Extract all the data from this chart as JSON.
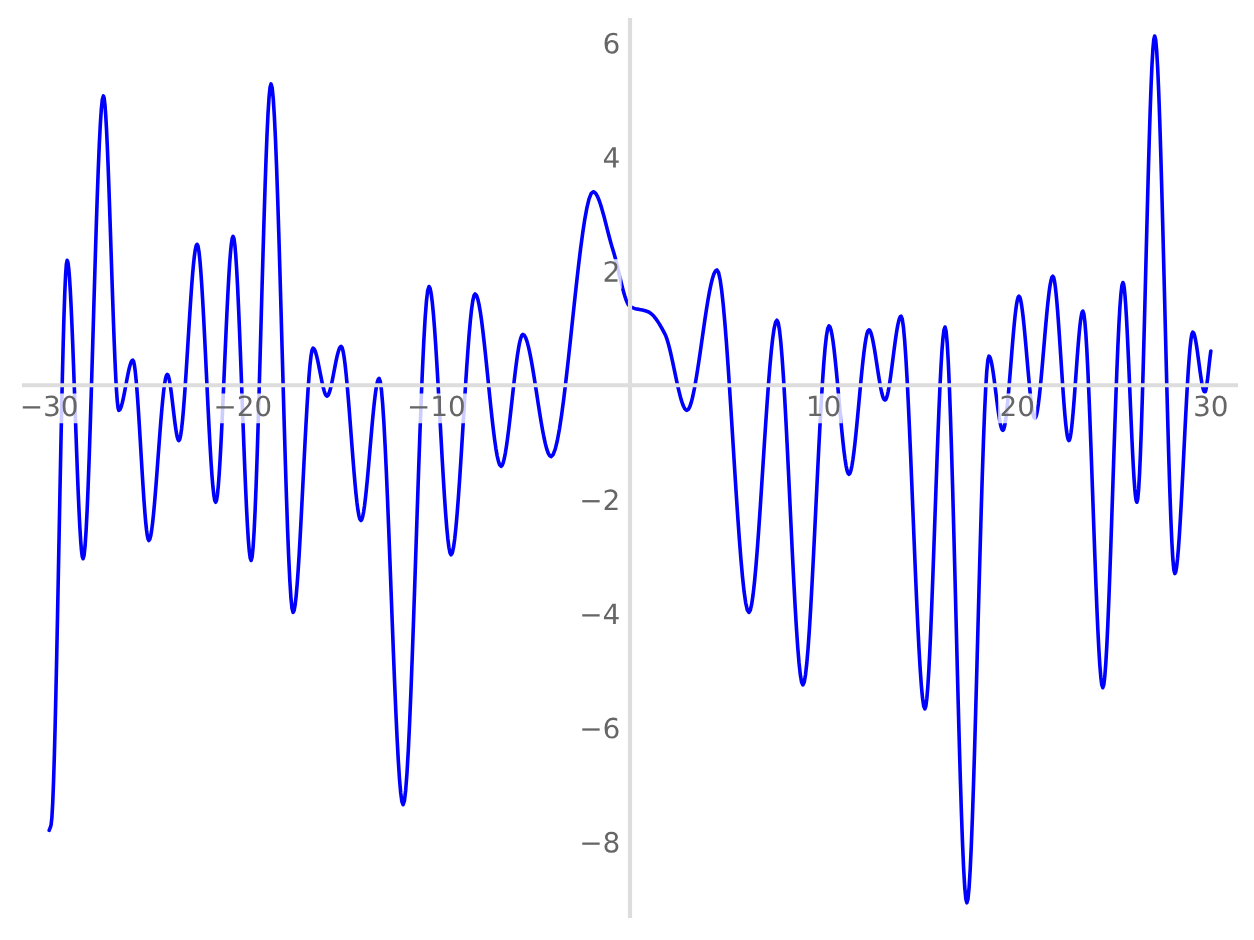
{
  "chart_data": {
    "type": "line",
    "xlim": [
      -31.3,
      31.3
    ],
    "ylim": [
      -9.3,
      6.4
    ],
    "xticks": [
      {
        "value": -30,
        "label": "−30"
      },
      {
        "value": -20,
        "label": "−20"
      },
      {
        "value": -10,
        "label": "−10"
      },
      10,
      20,
      30
    ],
    "yticks": [
      {
        "value": -8,
        "label": "−8"
      },
      {
        "value": -6,
        "label": "−6"
      },
      {
        "value": -4,
        "label": "−4"
      },
      {
        "value": -2,
        "label": "−2"
      },
      2,
      4,
      6
    ],
    "grid": false,
    "marker": "none",
    "line_style": "solid",
    "series": [
      {
        "color": "#0000ff",
        "x": [
          -30,
          -29.9,
          -29.07,
          -28.25,
          -27.2,
          -26.4,
          -25.68,
          -24.85,
          -23.9,
          -23.3,
          -22.36,
          -21.4,
          -20.5,
          -19.57,
          -18.54,
          -17.4,
          -16.37,
          -15.65,
          -14.92,
          -13.9,
          -12.96,
          -11.72,
          -10.38,
          -9.24,
          -8.0,
          -6.66,
          -5.53,
          -4.08,
          -1.9,
          -0.88,
          0,
          0.98,
          1.8,
          2.94,
          4.49,
          6.14,
          7.59,
          8.93,
          10.28,
          11.31,
          12.34,
          13.17,
          14.0,
          15.23,
          16.27,
          17.4,
          18.54,
          19.26,
          20.09,
          20.91,
          21.84,
          22.67,
          23.39,
          24.42,
          25.46,
          26.18,
          27.1,
          28.14,
          29.07,
          29.69,
          30
        ],
        "values": [
          -7.8,
          -7.7,
          2.19,
          -3.04,
          5.07,
          -0.44,
          0.44,
          -2.72,
          0.19,
          -0.97,
          2.47,
          -2.05,
          2.61,
          -3.07,
          5.28,
          -3.98,
          0.65,
          -0.19,
          0.68,
          -2.37,
          0.12,
          -7.35,
          1.73,
          -2.97,
          1.6,
          -1.42,
          0.89,
          -1.25,
          3.39,
          2.37,
          1.38,
          1.28,
          0.9,
          -0.44,
          2.02,
          -3.98,
          1.14,
          -5.25,
          1.04,
          -1.56,
          0.97,
          -0.26,
          1.21,
          -5.67,
          1.02,
          -9.07,
          0.51,
          -0.79,
          1.56,
          -0.58,
          1.91,
          -0.97,
          1.3,
          -5.3,
          1.8,
          -2.05,
          6.12,
          -3.3,
          0.93,
          -0.12,
          0.6
        ]
      }
    ]
  }
}
